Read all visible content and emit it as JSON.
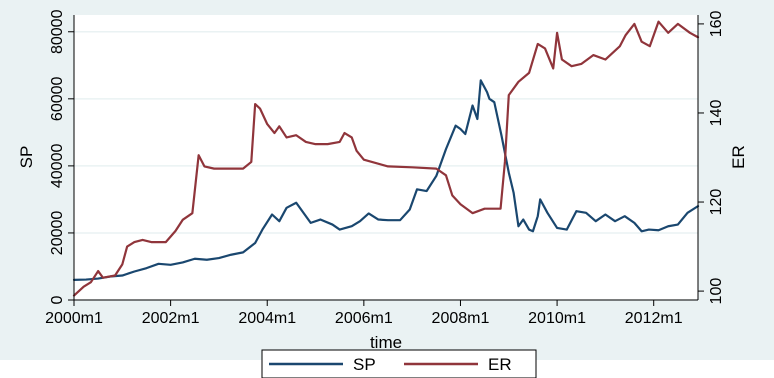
{
  "chart_data": {
    "type": "line",
    "title": "",
    "xlabel": "time",
    "ylabel_left": "SP",
    "ylabel_right": "ER",
    "xlim": [
      2000.0,
      2012.917
    ],
    "ylim_left": [
      0,
      85000
    ],
    "ylim_right": [
      98,
      162
    ],
    "x_ticks": [
      {
        "value": 2000,
        "label": "2000m1"
      },
      {
        "value": 2002,
        "label": "2002m1"
      },
      {
        "value": 2004,
        "label": "2004m1"
      },
      {
        "value": 2006,
        "label": "2006m1"
      },
      {
        "value": 2008,
        "label": "2008m1"
      },
      {
        "value": 2010,
        "label": "2010m1"
      },
      {
        "value": 2012,
        "label": "2012m1"
      }
    ],
    "y_ticks_left": [
      {
        "value": 0,
        "label": "0"
      },
      {
        "value": 20000,
        "label": "20000"
      },
      {
        "value": 40000,
        "label": "40000"
      },
      {
        "value": 60000,
        "label": "60000"
      },
      {
        "value": 80000,
        "label": "80000"
      }
    ],
    "y_ticks_right": [
      {
        "value": 100,
        "label": "100"
      },
      {
        "value": 120,
        "label": "120"
      },
      {
        "value": 140,
        "label": "140"
      },
      {
        "value": 160,
        "label": "160"
      }
    ],
    "grid": true,
    "legend_position": "bottom",
    "series": [
      {
        "name": "SP",
        "axis": "left",
        "color": "#1a476f",
        "points": [
          [
            2000.0,
            6000
          ],
          [
            2000.25,
            6100
          ],
          [
            2000.5,
            6400
          ],
          [
            2000.75,
            7000
          ],
          [
            2001.0,
            7300
          ],
          [
            2001.25,
            8500
          ],
          [
            2001.5,
            9500
          ],
          [
            2001.75,
            10800
          ],
          [
            2002.0,
            10500
          ],
          [
            2002.25,
            11200
          ],
          [
            2002.5,
            12300
          ],
          [
            2002.75,
            12000
          ],
          [
            2003.0,
            12500
          ],
          [
            2003.25,
            13500
          ],
          [
            2003.5,
            14200
          ],
          [
            2003.75,
            17000
          ],
          [
            2003.9,
            21000
          ],
          [
            2004.1,
            25500
          ],
          [
            2004.25,
            23500
          ],
          [
            2004.4,
            27500
          ],
          [
            2004.6,
            29000
          ],
          [
            2004.9,
            23000
          ],
          [
            2005.1,
            24000
          ],
          [
            2005.35,
            22500
          ],
          [
            2005.5,
            21000
          ],
          [
            2005.75,
            22000
          ],
          [
            2005.92,
            23500
          ],
          [
            2006.1,
            25800
          ],
          [
            2006.3,
            24000
          ],
          [
            2006.5,
            23800
          ],
          [
            2006.75,
            23800
          ],
          [
            2006.95,
            27000
          ],
          [
            2007.1,
            33000
          ],
          [
            2007.3,
            32500
          ],
          [
            2007.5,
            37000
          ],
          [
            2007.7,
            45000
          ],
          [
            2007.9,
            52000
          ],
          [
            2008.0,
            51000
          ],
          [
            2008.1,
            49500
          ],
          [
            2008.25,
            58000
          ],
          [
            2008.35,
            54000
          ],
          [
            2008.42,
            65500
          ],
          [
            2008.55,
            62000
          ],
          [
            2008.6,
            60000
          ],
          [
            2008.7,
            59000
          ],
          [
            2008.85,
            49000
          ],
          [
            2009.0,
            38000
          ],
          [
            2009.1,
            32000
          ],
          [
            2009.2,
            22000
          ],
          [
            2009.3,
            24000
          ],
          [
            2009.42,
            21000
          ],
          [
            2009.5,
            20500
          ],
          [
            2009.6,
            25000
          ],
          [
            2009.65,
            30000
          ],
          [
            2009.8,
            26000
          ],
          [
            2010.0,
            21500
          ],
          [
            2010.2,
            21000
          ],
          [
            2010.4,
            26500
          ],
          [
            2010.6,
            26000
          ],
          [
            2010.8,
            23500
          ],
          [
            2011.0,
            25500
          ],
          [
            2011.2,
            23500
          ],
          [
            2011.4,
            25000
          ],
          [
            2011.6,
            23000
          ],
          [
            2011.75,
            20500
          ],
          [
            2011.9,
            21000
          ],
          [
            2012.1,
            20800
          ],
          [
            2012.3,
            22000
          ],
          [
            2012.5,
            22500
          ],
          [
            2012.7,
            26000
          ],
          [
            2012.917,
            28000
          ]
        ]
      },
      {
        "name": "ER",
        "axis": "right",
        "color": "#90353b",
        "points": [
          [
            2000.0,
            99.0
          ],
          [
            2000.2,
            101.0
          ],
          [
            2000.35,
            102.0
          ],
          [
            2000.5,
            104.5
          ],
          [
            2000.6,
            103.0
          ],
          [
            2000.85,
            103.5
          ],
          [
            2001.0,
            106.0
          ],
          [
            2001.1,
            110.0
          ],
          [
            2001.25,
            111.0
          ],
          [
            2001.42,
            111.5
          ],
          [
            2001.6,
            111.0
          ],
          [
            2001.9,
            111.0
          ],
          [
            2002.1,
            113.5
          ],
          [
            2002.25,
            116.0
          ],
          [
            2002.45,
            117.5
          ],
          [
            2002.58,
            130.5
          ],
          [
            2002.7,
            128.0
          ],
          [
            2002.9,
            127.5
          ],
          [
            2003.2,
            127.5
          ],
          [
            2003.5,
            127.5
          ],
          [
            2003.67,
            129.0
          ],
          [
            2003.75,
            142.0
          ],
          [
            2003.85,
            141.0
          ],
          [
            2004.0,
            137.5
          ],
          [
            2004.15,
            135.5
          ],
          [
            2004.25,
            137.0
          ],
          [
            2004.4,
            134.5
          ],
          [
            2004.6,
            135.0
          ],
          [
            2004.8,
            133.5
          ],
          [
            2005.0,
            133.0
          ],
          [
            2005.25,
            133.0
          ],
          [
            2005.5,
            133.5
          ],
          [
            2005.6,
            135.5
          ],
          [
            2005.75,
            134.5
          ],
          [
            2005.85,
            131.5
          ],
          [
            2006.0,
            129.5
          ],
          [
            2006.5,
            128.0
          ],
          [
            2007.0,
            127.8
          ],
          [
            2007.5,
            127.5
          ],
          [
            2007.7,
            126.0
          ],
          [
            2007.83,
            121.5
          ],
          [
            2008.0,
            119.5
          ],
          [
            2008.25,
            117.5
          ],
          [
            2008.5,
            118.5
          ],
          [
            2008.83,
            118.5
          ],
          [
            2008.92,
            129.0
          ],
          [
            2009.0,
            144.0
          ],
          [
            2009.2,
            147.0
          ],
          [
            2009.42,
            149.0
          ],
          [
            2009.6,
            155.5
          ],
          [
            2009.75,
            154.5
          ],
          [
            2009.92,
            150.0
          ],
          [
            2010.0,
            158.0
          ],
          [
            2010.1,
            152.0
          ],
          [
            2010.3,
            150.5
          ],
          [
            2010.5,
            151.0
          ],
          [
            2010.75,
            153.0
          ],
          [
            2011.0,
            152.0
          ],
          [
            2011.3,
            155.0
          ],
          [
            2011.42,
            157.5
          ],
          [
            2011.6,
            160.0
          ],
          [
            2011.75,
            156.0
          ],
          [
            2011.92,
            155.0
          ],
          [
            2012.1,
            160.5
          ],
          [
            2012.3,
            158.0
          ],
          [
            2012.5,
            160.0
          ],
          [
            2012.75,
            158.0
          ],
          [
            2012.917,
            157.0
          ]
        ]
      }
    ]
  }
}
